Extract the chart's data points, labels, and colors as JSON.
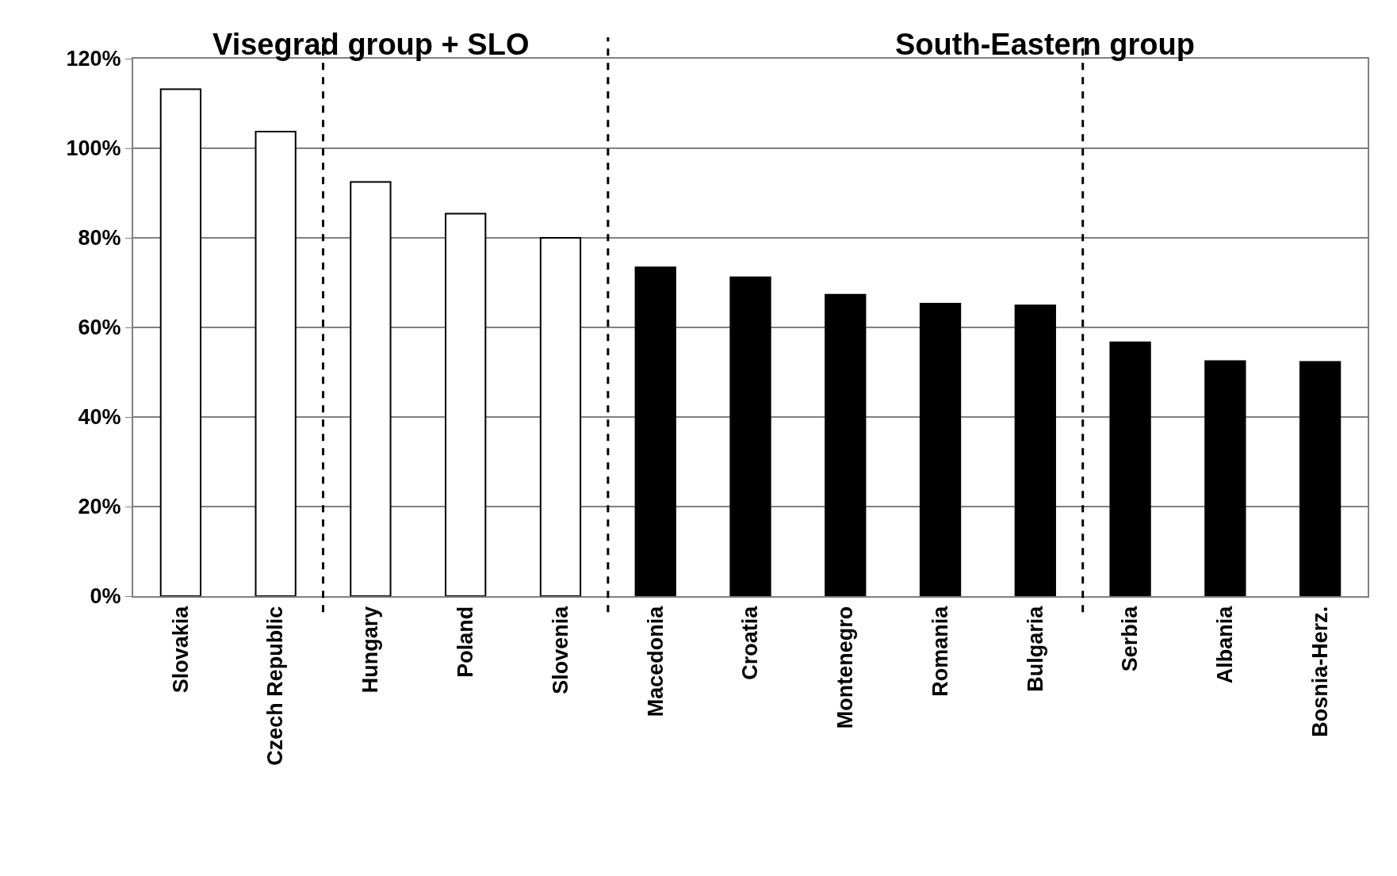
{
  "chart_data": {
    "type": "bar",
    "categories": [
      "Slovakia",
      "Czech Republic",
      "Hungary",
      "Poland",
      "Slovenia",
      "Macedonia",
      "Croatia",
      "Montenegro",
      "Romania",
      "Bulgaria",
      "Serbia",
      "Albania",
      "Bosnia-Herz."
    ],
    "values": [
      113.2,
      103.7,
      92.5,
      85.4,
      80.0,
      73.4,
      71.2,
      67.3,
      65.3,
      64.9,
      56.7,
      52.5,
      52.3
    ],
    "colors": [
      "#ffffff",
      "#ffffff",
      "#ffffff",
      "#ffffff",
      "#ffffff",
      "#000000",
      "#000000",
      "#000000",
      "#000000",
      "#000000",
      "#000000",
      "#000000",
      "#000000"
    ],
    "ylim": [
      0,
      120
    ],
    "yticks": [
      {
        "value": 0,
        "label": "0%"
      },
      {
        "value": 20,
        "label": "20%"
      },
      {
        "value": 40,
        "label": "40%"
      },
      {
        "value": 60,
        "label": "60%"
      },
      {
        "value": 80,
        "label": "80%"
      },
      {
        "value": 100,
        "label": "100%"
      },
      {
        "value": 120,
        "label": "120%"
      }
    ],
    "grid": "y",
    "annotations": [
      "Visegrad group + SLO",
      "South-Eastern group"
    ]
  }
}
